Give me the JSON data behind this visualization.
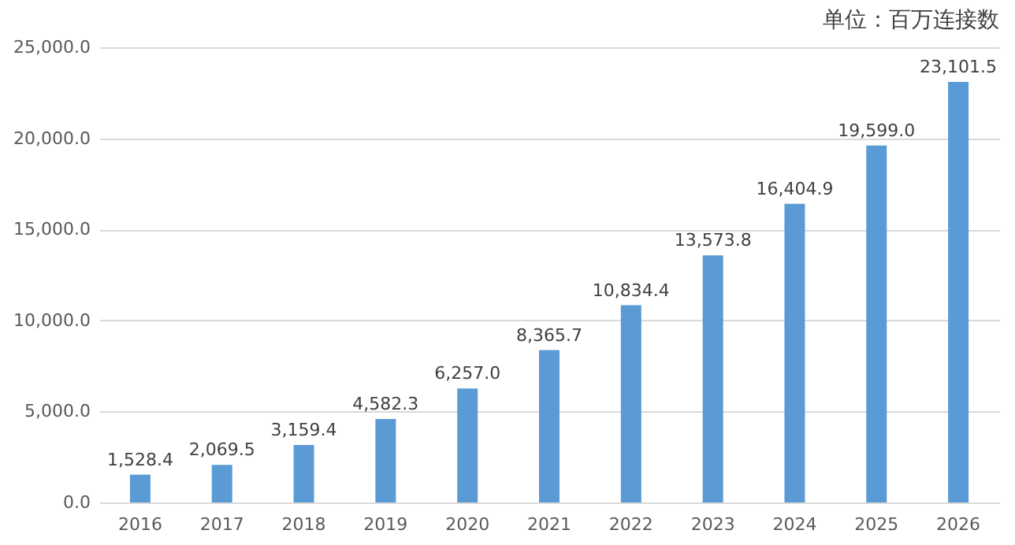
{
  "chart_data": {
    "type": "bar",
    "annotations": [
      "单位：百万连接数"
    ],
    "categories": [
      "2016",
      "2017",
      "2018",
      "2019",
      "2020",
      "2021",
      "2022",
      "2023",
      "2024",
      "2025",
      "2026"
    ],
    "values": [
      1528.4,
      2069.5,
      3159.4,
      4582.3,
      6257.0,
      8365.7,
      10834.4,
      13573.8,
      16404.9,
      19599.0,
      23101.5
    ],
    "color": "#5b9bd5",
    "ylim": [
      0,
      25000
    ],
    "yticks": [
      {
        "value": 0,
        "label": "0.0"
      },
      {
        "value": 5000,
        "label": "5,000.0"
      },
      {
        "value": 10000,
        "label": "10,000.0"
      },
      {
        "value": 15000,
        "label": "15,000.0"
      },
      {
        "value": 20000,
        "label": "20,000.0"
      },
      {
        "value": 25000,
        "label": "25,000.0"
      }
    ],
    "grid": "y",
    "value_labels": [
      "1,528.4",
      "2,069.5",
      "3,159.4",
      "4,582.3",
      "6,257.0",
      "8,365.7",
      "10,834.4",
      "13,573.8",
      "16,404.9",
      "19,599.0",
      "23,101.5"
    ]
  }
}
